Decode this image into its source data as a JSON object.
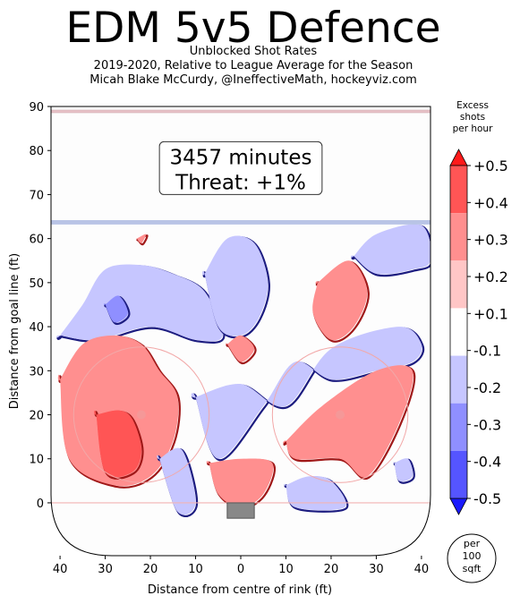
{
  "header": {
    "title": "EDM 5v5 Defence",
    "subtitle_lines": [
      "Unblocked Shot Rates",
      "2019-2020, Relative to League Average for the Season",
      "Micah Blake McCurdy, @IneffectiveMath, hockeyviz.com"
    ]
  },
  "info_box": {
    "minutes_line": "3457 minutes",
    "threat_line": "Threat: +1%"
  },
  "colorbar": {
    "title_lines": [
      "Excess",
      "shots",
      "per hour"
    ],
    "ticks": [
      "+0.5",
      "+0.4",
      "+0.3",
      "+0.2",
      "+0.1",
      "-0.1",
      "-0.2",
      "-0.3",
      "-0.4",
      "-0.5"
    ],
    "colors": [
      "#ff1a1a",
      "#ff5555",
      "#ff8f8f",
      "#ffc6c6",
      "#ffffff",
      "#c6c6ff",
      "#8f8fff",
      "#5555ff",
      "#1a1aff"
    ],
    "per_label_lines": [
      "per",
      "100",
      "sqft"
    ]
  },
  "chart_data": {
    "type": "heatmap",
    "title": "EDM 5v5 Defence",
    "xlabel": "Distance from centre of rink (ft)",
    "ylabel": "Distance from goal line (ft)",
    "xlim": [
      -42,
      42
    ],
    "ylim": [
      -12,
      90
    ],
    "x_ticks": [
      -40,
      -30,
      -20,
      -10,
      0,
      10,
      20,
      30,
      40
    ],
    "x_tick_labels": [
      "40",
      "30",
      "20",
      "10",
      "0",
      "10",
      "20",
      "30",
      "40"
    ],
    "y_ticks": [
      0,
      10,
      20,
      30,
      40,
      50,
      60,
      70,
      80,
      90
    ],
    "y_tick_labels": [
      "0",
      "10",
      "20",
      "30",
      "40",
      "50",
      "60",
      "70",
      "80",
      "90"
    ],
    "value_range": [
      -0.5,
      0.5
    ],
    "regions": [
      {
        "sign": "negative",
        "level": -0.1,
        "x": [
          -40,
          -35,
          -30,
          -22,
          -15,
          -8,
          -4,
          -10,
          -20,
          -32,
          -40
        ],
        "y": [
          38,
          45,
          53,
          54,
          52,
          48,
          38,
          37,
          40,
          37,
          38
        ]
      },
      {
        "sign": "negative",
        "level": -0.1,
        "x": [
          -8,
          -3,
          3,
          6,
          4,
          0,
          -5,
          -8
        ],
        "y": [
          52,
          60,
          59,
          50,
          42,
          38,
          40,
          52
        ]
      },
      {
        "sign": "negative",
        "level": -0.2,
        "x": [
          -30,
          -27,
          -25,
          -28,
          -30
        ],
        "y": [
          45,
          47,
          43,
          41,
          45
        ]
      },
      {
        "sign": "positive",
        "level": 0.2,
        "x": [
          17,
          24,
          28,
          25,
          20,
          16,
          17
        ],
        "y": [
          50,
          55,
          48,
          40,
          37,
          43,
          50
        ]
      },
      {
        "sign": "negative",
        "level": -0.1,
        "x": [
          25,
          30,
          40,
          42,
          38,
          30,
          25
        ],
        "y": [
          56,
          61,
          63,
          55,
          53,
          52,
          56
        ]
      },
      {
        "sign": "negative",
        "level": -0.1,
        "x": [
          -10,
          0,
          10,
          20,
          35,
          40,
          38,
          30,
          20,
          12,
          5,
          -5,
          -10
        ],
        "y": [
          24,
          27,
          22,
          35,
          40,
          36,
          32,
          30,
          28,
          32,
          22,
          10,
          24
        ]
      },
      {
        "sign": "positive",
        "level": 0.2,
        "x": [
          -40,
          -35,
          -28,
          -22,
          -18,
          -14,
          -15,
          -20,
          -28,
          -38,
          -40
        ],
        "y": [
          28,
          36,
          38,
          36,
          30,
          24,
          14,
          6,
          4,
          10,
          28
        ]
      },
      {
        "sign": "positive",
        "level": 0.3,
        "x": [
          -32,
          -27,
          -24,
          -22,
          -24,
          -30,
          -32
        ],
        "y": [
          20,
          21,
          19,
          12,
          7,
          7,
          20
        ]
      },
      {
        "sign": "positive",
        "level": 0.2,
        "x": [
          10,
          18,
          30,
          38,
          35,
          28,
          22,
          12,
          10
        ],
        "y": [
          14,
          22,
          30,
          30,
          18,
          6,
          10,
          10,
          14
        ]
      },
      {
        "sign": "positive",
        "level": 0.2,
        "x": [
          -7,
          0,
          7,
          5,
          0,
          -5,
          -7
        ],
        "y": [
          9,
          10,
          9,
          2,
          -1,
          2,
          9
        ]
      },
      {
        "sign": "positive",
        "level": 0.2,
        "x": [
          -3,
          0,
          3,
          0,
          -3
        ],
        "y": [
          36,
          38,
          35,
          32,
          36
        ]
      },
      {
        "sign": "negative",
        "level": -0.1,
        "x": [
          -18,
          -13,
          -10,
          -14,
          -18
        ],
        "y": [
          10,
          12,
          0,
          -2,
          10
        ]
      },
      {
        "sign": "negative",
        "level": -0.1,
        "x": [
          10,
          15,
          20,
          23,
          12,
          10
        ],
        "y": [
          4,
          6,
          5,
          -1,
          -1,
          4
        ]
      },
      {
        "sign": "negative",
        "level": -0.1,
        "x": [
          34,
          37,
          38,
          35,
          34
        ],
        "y": [
          9,
          10,
          6,
          5,
          9
        ]
      },
      {
        "sign": "positive",
        "level": 0.2,
        "x": [
          -23,
          -21,
          -22,
          -23
        ],
        "y": [
          60,
          61,
          59,
          60
        ]
      }
    ]
  }
}
